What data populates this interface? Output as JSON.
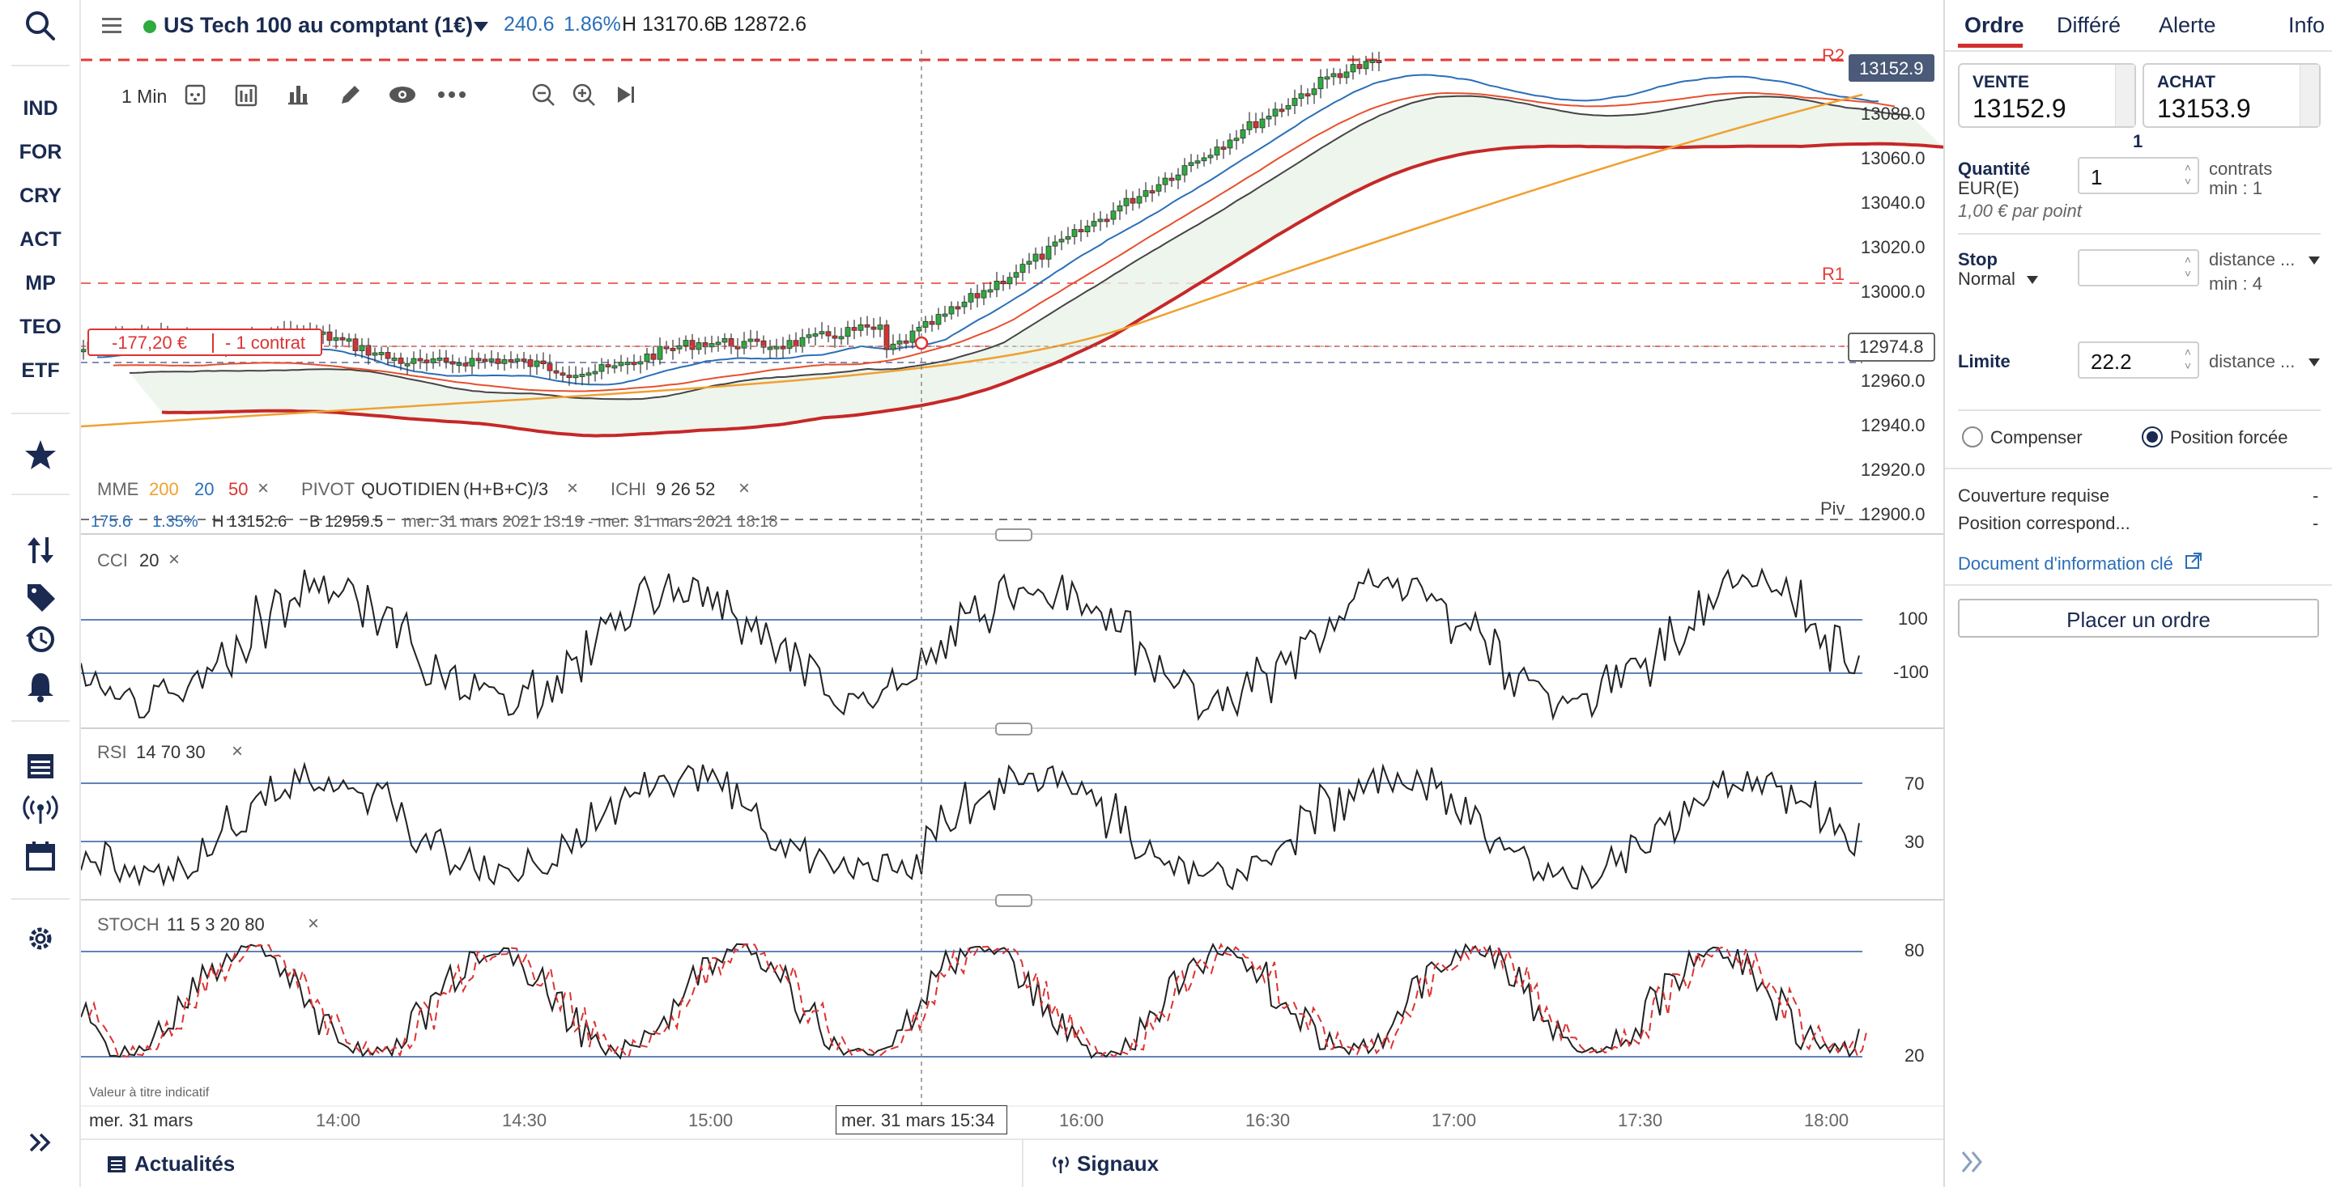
{
  "nav": {
    "items": [
      "IND",
      "FOR",
      "CRY",
      "ACT",
      "MP",
      "TEO",
      "ETF"
    ]
  },
  "instrument": {
    "name": "US Tech 100 au comptant (1€)",
    "change": "240.6",
    "change_pct": "1.86%",
    "high": "H 13170.6",
    "low": "B 12872.6",
    "status_color": "#2eaa3e"
  },
  "toolbar": {
    "timeframe": "1 Min"
  },
  "price_axis": {
    "ticks": [
      "13080.0",
      "13060.0",
      "13040.0",
      "13020.0",
      "13000.0",
      "12980.0",
      "12960.0",
      "12940.0",
      "12920.0",
      "12900.0"
    ],
    "current_price": "13152.9",
    "crosshair_price": "12974.8",
    "level_r1": "R1",
    "level_r2": "R2",
    "level_piv": "Piv"
  },
  "position": {
    "pnl": "-177,20 €",
    "size": "- 1 contrat"
  },
  "legend": {
    "mme_label": "MME",
    "mme_200": "200",
    "mme_20": "20",
    "mme_50": "50",
    "pivot_label": "PIVOT",
    "pivot_value": "QUOTIDIEN",
    "pivot_formula": "(H+B+C)/3",
    "ichi_label": "ICHI",
    "ichi_values": "9   26   52",
    "stats_change": "175.6",
    "stats_pct": "1.35%",
    "stats_high": "H 13152.6",
    "stats_low": "B 12959.5",
    "stats_range": "mer. 31 mars 2021 13:19 - mer. 31 mars 2021 18:18"
  },
  "indicators": {
    "cci": {
      "label": "CCI",
      "params": "20",
      "upper": "100",
      "lower": "-100"
    },
    "rsi": {
      "label": "RSI",
      "params": "14   70   30",
      "upper": "70",
      "lower": "30"
    },
    "stoch": {
      "label": "STOCH",
      "params": "11   5   3   20   80",
      "upper": "80",
      "lower": "20"
    }
  },
  "time_axis": {
    "date": "mer. 31 mars",
    "ticks": [
      "14:00",
      "14:30",
      "15:00",
      "16:00",
      "16:30",
      "17:00",
      "17:30",
      "18:00"
    ],
    "crosshair_time": "mer. 31 mars 15:34",
    "note": "Valeur à titre indicatif"
  },
  "bottom": {
    "news": "Actualités",
    "signals": "Signaux"
  },
  "panel": {
    "tabs": [
      "Ordre",
      "Différé",
      "Alerte",
      "Info"
    ],
    "sell_label": "VENTE",
    "sell_price": "13152.9",
    "buy_label": "ACHAT",
    "buy_price": "13153.9",
    "spread": "1",
    "qty_label": "Quantité",
    "qty_unit": "EUR(E)",
    "qty_value": "1",
    "qty_contracts": "contrats",
    "qty_min": "min : 1",
    "per_point": "1,00 € par point",
    "stop_label": "Stop",
    "stop_type": "Normal",
    "stop_value": "",
    "stop_mode": "distance ...",
    "stop_min": "min : 4",
    "limit_label": "Limite",
    "limit_value": "22.2",
    "limit_mode": "distance ...",
    "radio_hedge": "Compenser",
    "radio_forced": "Position forcée",
    "margin_label": "Couverture requise",
    "margin_value": "-",
    "pos_label": "Position correspond...",
    "pos_value": "-",
    "kid_link": "Document d'information clé",
    "place_order": "Placer un ordre"
  },
  "colors": {
    "navy": "#1a2a50",
    "accent_red": "#d32f2f",
    "candle_up": "#2eaa3e",
    "candle_down": "#d33333",
    "mme200": "#f0a030",
    "mme20": "#2a6fb8",
    "mme50": "#e6502e"
  }
}
